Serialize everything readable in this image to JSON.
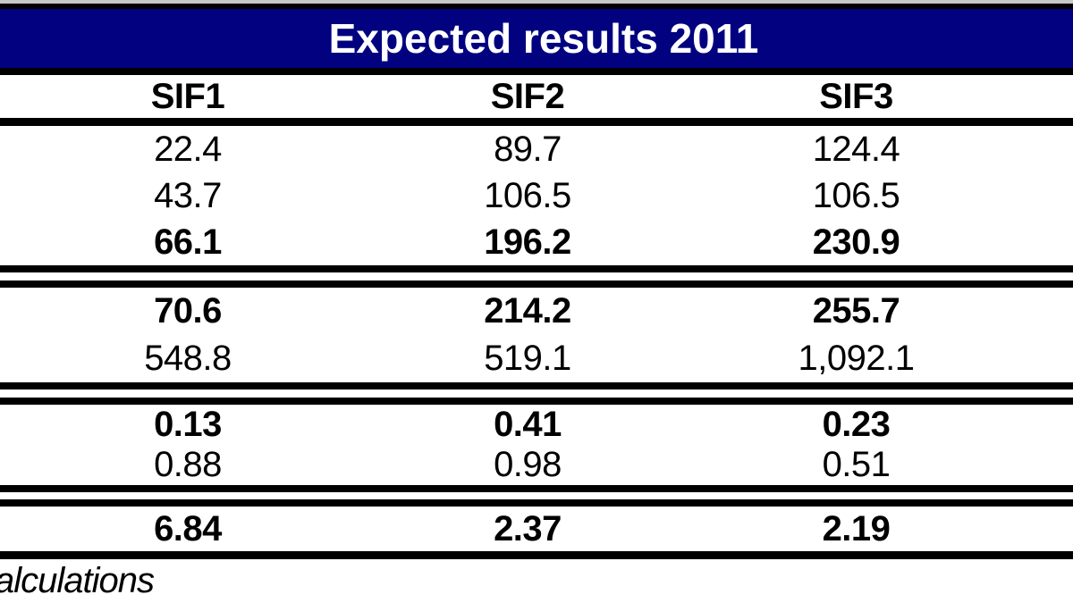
{
  "table": {
    "title": "Expected results 2011",
    "columns": [
      "SIF1",
      "SIF2",
      "SIF3"
    ],
    "sections": [
      {
        "rows": [
          {
            "bold": false,
            "values": [
              "22.4",
              "89.7",
              "124.4"
            ]
          },
          {
            "bold": false,
            "values": [
              "43.7",
              "106.5",
              "106.5"
            ]
          },
          {
            "bold": true,
            "values": [
              "66.1",
              "196.2",
              "230.9"
            ]
          }
        ]
      },
      {
        "rows": [
          {
            "bold": true,
            "values": [
              "70.6",
              "214.2",
              "255.7"
            ]
          },
          {
            "bold": false,
            "values": [
              "548.8",
              "519.1",
              "1,092.1"
            ]
          }
        ]
      },
      {
        "rows": [
          {
            "bold": true,
            "values": [
              "0.13",
              "0.41",
              "0.23"
            ]
          },
          {
            "bold": false,
            "values": [
              "0.88",
              "0.98",
              "0.51"
            ]
          }
        ]
      },
      {
        "rows": [
          {
            "bold": true,
            "values": [
              "6.84",
              "2.37",
              "2.19"
            ]
          }
        ]
      }
    ],
    "footnote": "alculations"
  },
  "colors": {
    "title_bg": "#020280",
    "title_text": "#ffffff",
    "border": "#000000",
    "text": "#000000",
    "top_strip": "#c8c8c8"
  }
}
